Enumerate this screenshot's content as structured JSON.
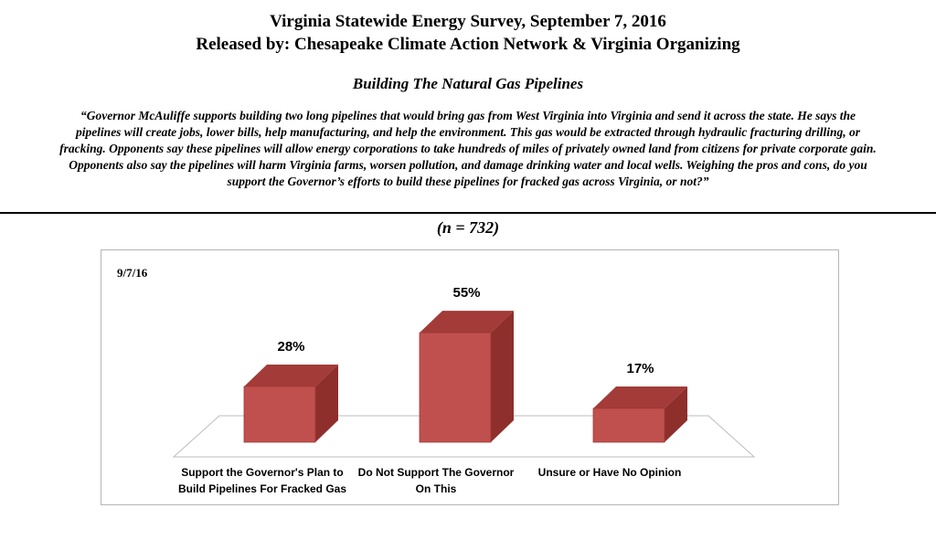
{
  "header": {
    "title": "Virginia Statewide Energy Survey, September 7, 2016",
    "released_by": "Released by: Chesapeake Climate Action Network & Virginia Organizing",
    "subtitle": "Building The Natural Gas Pipelines",
    "question": "“Governor McAuliffe supports building two long pipelines that would bring gas from West Virginia into Virginia and send it across the state.  He says the pipelines will create jobs, lower bills, help manufacturing, and help the environment. This gas would be extracted through hydraulic fracturing drilling, or fracking.  Opponents say these pipelines will allow energy corporations to take hundreds of miles of privately owned land from citizens for private corporate gain.  Opponents also say the pipelines will harm Virginia farms, worsen pollution, and damage drinking water and local wells. Weighing the pros and cons, do you support the Governor’s efforts to build these pipelines for fracked gas across Virginia, or not?”",
    "sample_size": "(n = 732)"
  },
  "chart_data": {
    "type": "bar",
    "series_label": "9/7/16",
    "categories": [
      "Support the Governor's Plan to Build Pipelines For Fracked Gas",
      "Do Not Support The Governor On This",
      "Unsure or Have No Opinion"
    ],
    "category_lines": [
      [
        "Support the Governor's Plan to",
        "Build Pipelines For Fracked Gas"
      ],
      [
        "Do Not Support The Governor",
        "On This"
      ],
      [
        "Unsure or Have No Opinion"
      ]
    ],
    "values": [
      28,
      55,
      17
    ],
    "value_labels": [
      "28%",
      "55%",
      "17%"
    ],
    "ylim": [
      0,
      60
    ],
    "bar_color": "#c0504d",
    "bar_top_color": "#a33b38",
    "bar_side_color": "#8e2f2c",
    "grid": false
  }
}
